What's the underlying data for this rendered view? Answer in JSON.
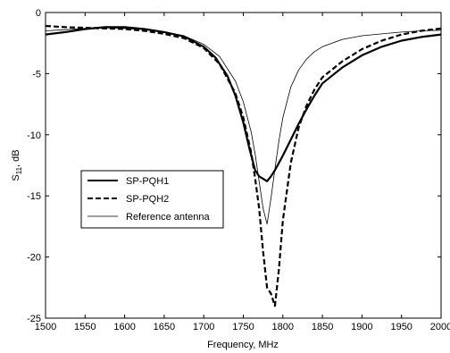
{
  "chart_data": {
    "type": "line",
    "xlabel": "Frequency, MHz",
    "ylabel": "S11, dB",
    "ylabel_main": "S",
    "ylabel_sub": "11",
    "ylabel_rest": ", dB",
    "xlim": [
      1500,
      2000
    ],
    "ylim": [
      -25,
      0
    ],
    "xticks": [
      1500,
      1550,
      1600,
      1650,
      1700,
      1750,
      1800,
      1850,
      1900,
      1950,
      2000
    ],
    "yticks": [
      0,
      -5,
      -10,
      -15,
      -20,
      -25
    ],
    "grid": false,
    "legend_position": "left",
    "series": [
      {
        "name": "SP-PQH1",
        "style": "solid-thick",
        "x": [
          1500,
          1525,
          1550,
          1575,
          1600,
          1625,
          1650,
          1675,
          1700,
          1715,
          1730,
          1740,
          1750,
          1758,
          1765,
          1770,
          1775,
          1780,
          1785,
          1790,
          1795,
          1800,
          1810,
          1820,
          1830,
          1840,
          1850,
          1875,
          1900,
          1925,
          1950,
          1975,
          2000
        ],
        "y": [
          -1.8,
          -1.6,
          -1.35,
          -1.2,
          -1.2,
          -1.35,
          -1.6,
          -1.95,
          -2.8,
          -3.7,
          -5.2,
          -6.8,
          -9.0,
          -11.2,
          -12.9,
          -13.4,
          -13.6,
          -13.8,
          -13.4,
          -12.9,
          -12.3,
          -11.7,
          -10.4,
          -9.1,
          -7.9,
          -6.8,
          -5.8,
          -4.5,
          -3.5,
          -2.8,
          -2.3,
          -2.0,
          -1.8
        ]
      },
      {
        "name": "SP-PQH2",
        "style": "dashed-thick",
        "x": [
          1500,
          1525,
          1550,
          1575,
          1600,
          1625,
          1650,
          1675,
          1700,
          1720,
          1740,
          1750,
          1760,
          1765,
          1770,
          1775,
          1780,
          1785,
          1790,
          1795,
          1800,
          1810,
          1820,
          1830,
          1840,
          1850,
          1875,
          1900,
          1925,
          1950,
          1975,
          2000
        ],
        "y": [
          -1.1,
          -1.2,
          -1.25,
          -1.3,
          -1.35,
          -1.5,
          -1.75,
          -2.1,
          -2.9,
          -4.2,
          -6.6,
          -8.6,
          -11.5,
          -13.6,
          -16.0,
          -19.5,
          -22.5,
          -23.0,
          -24.0,
          -21.0,
          -17.0,
          -12.3,
          -9.4,
          -7.6,
          -6.3,
          -5.3,
          -4.0,
          -3.0,
          -2.3,
          -1.8,
          -1.5,
          -1.3
        ]
      },
      {
        "name": "Reference antenna",
        "style": "solid-thin",
        "x": [
          1500,
          1525,
          1550,
          1575,
          1600,
          1625,
          1650,
          1675,
          1700,
          1720,
          1740,
          1750,
          1760,
          1765,
          1770,
          1775,
          1780,
          1785,
          1790,
          1795,
          1800,
          1810,
          1820,
          1830,
          1840,
          1850,
          1875,
          1900,
          1925,
          1950,
          1975,
          2000
        ],
        "y": [
          -1.5,
          -1.4,
          -1.3,
          -1.25,
          -1.3,
          -1.4,
          -1.6,
          -1.9,
          -2.6,
          -3.6,
          -5.6,
          -7.3,
          -9.8,
          -11.6,
          -13.8,
          -16.0,
          -17.3,
          -15.2,
          -12.8,
          -10.5,
          -8.6,
          -6.1,
          -4.7,
          -3.8,
          -3.2,
          -2.8,
          -2.2,
          -1.9,
          -1.75,
          -1.6,
          -1.5,
          -1.45
        ]
      }
    ]
  }
}
